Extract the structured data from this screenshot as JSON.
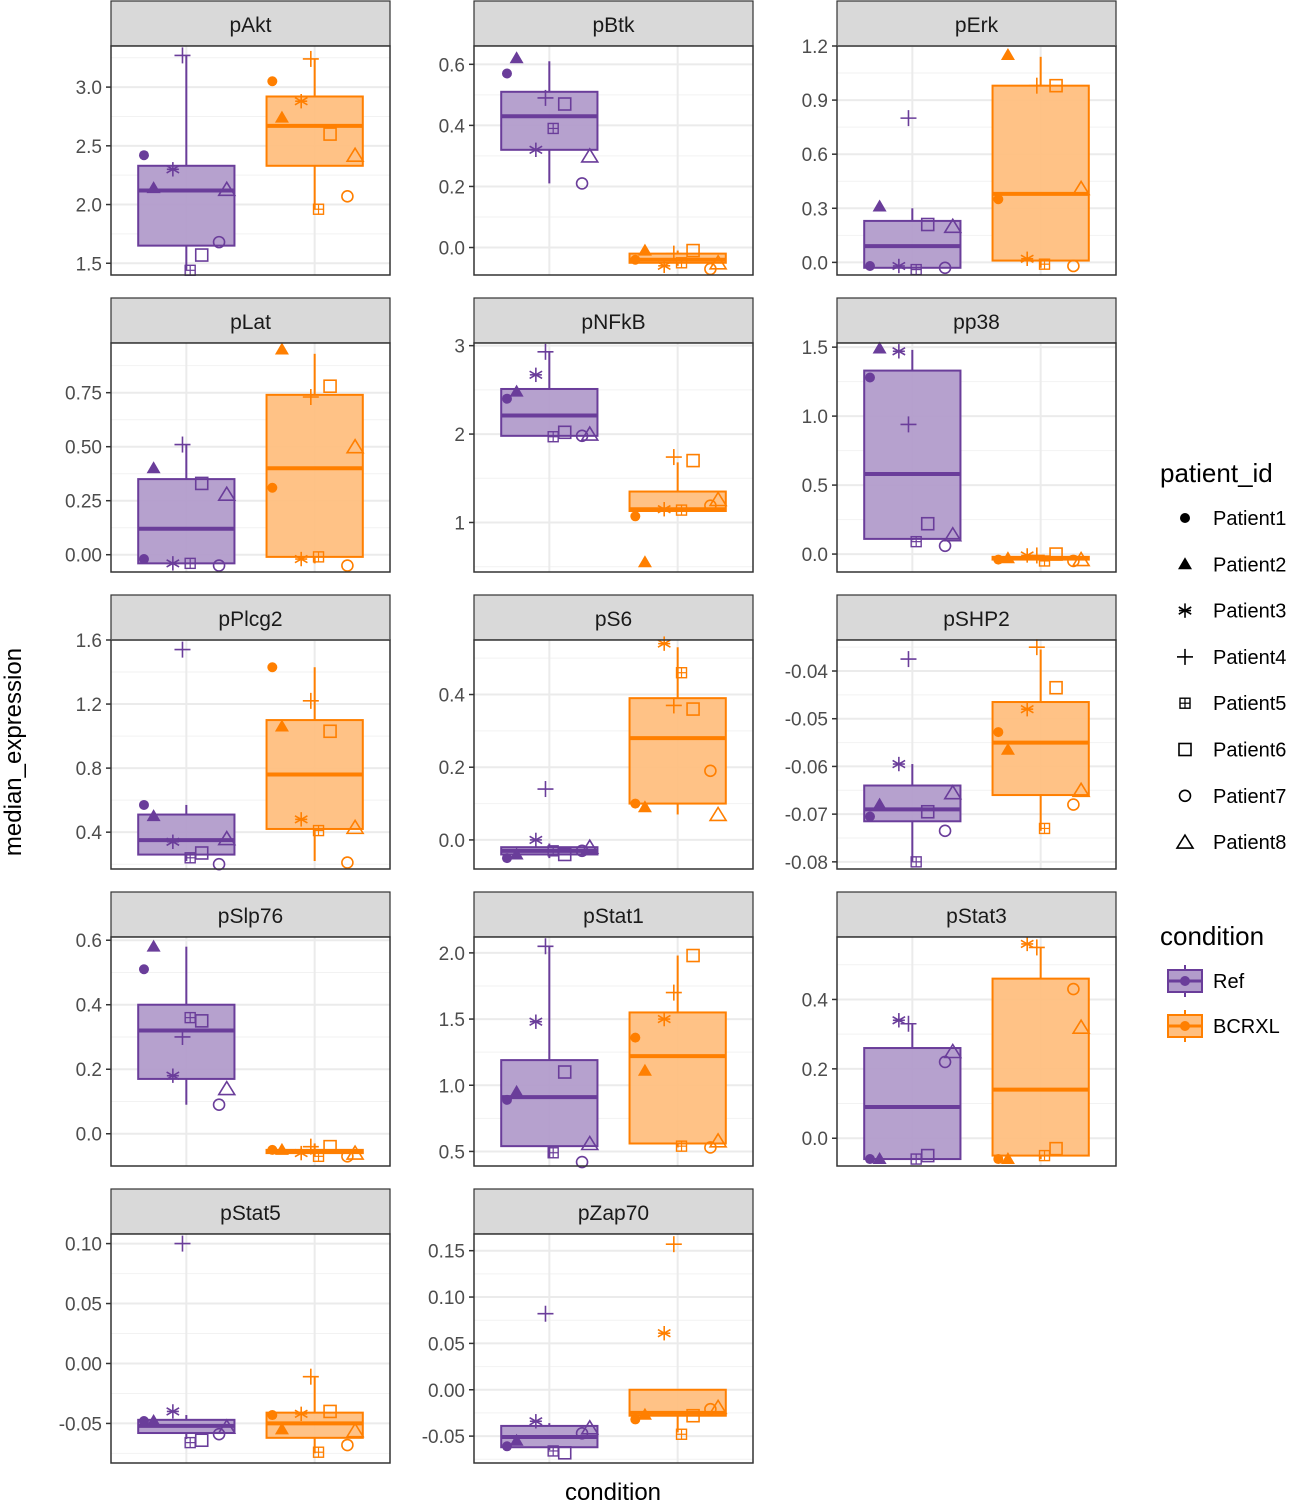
{
  "chart_data": {
    "type": "box",
    "xlabel": "condition",
    "ylabel": "median_expression",
    "x_categories": [
      "Ref",
      "BCRXL"
    ],
    "colors": {
      "Ref": "#6a3d9a",
      "BCRXL": "#ff7f00"
    },
    "grid": true,
    "legend": {
      "position": "right",
      "patient_title": "patient_id",
      "patients": [
        "Patient1",
        "Patient2",
        "Patient3",
        "Patient4",
        "Patient5",
        "Patient6",
        "Patient7",
        "Patient8"
      ],
      "shapes": [
        "filled-circle",
        "filled-triangle",
        "asterisk",
        "plus",
        "square-plus",
        "open-square",
        "open-circle",
        "open-triangle"
      ],
      "condition_title": "condition",
      "conditions": [
        "Ref",
        "BCRXL"
      ]
    },
    "panels": [
      {
        "marker": "pAkt",
        "ylim": [
          1.4,
          3.35
        ],
        "yticks": [
          1.5,
          2.0,
          2.5,
          3.0
        ],
        "ylabels": [
          "1.5",
          "2.0",
          "2.5",
          "3.0"
        ],
        "Ref": {
          "box": [
            1.44,
            1.65,
            2.12,
            2.33,
            3.27
          ],
          "points": [
            2.42,
            2.14,
            2.3,
            3.27,
            1.44,
            1.57,
            1.68,
            2.13
          ]
        },
        "BCRXL": {
          "box": [
            1.96,
            2.33,
            2.67,
            2.92,
            3.24
          ],
          "points": [
            3.05,
            2.74,
            2.88,
            3.24,
            1.96,
            2.6,
            2.07,
            2.42
          ]
        }
      },
      {
        "marker": "pBtk",
        "ylim": [
          -0.09,
          0.66
        ],
        "yticks": [
          0.0,
          0.2,
          0.4,
          0.6
        ],
        "ylabels": [
          "0.0",
          "0.2",
          "0.4",
          "0.6"
        ],
        "Ref": {
          "box": [
            0.21,
            0.32,
            0.43,
            0.51,
            0.61
          ],
          "points": [
            0.57,
            0.62,
            0.32,
            0.49,
            0.39,
            0.47,
            0.21,
            0.3
          ]
        },
        "BCRXL": {
          "box": [
            -0.06,
            -0.05,
            -0.04,
            -0.02,
            -0.01
          ],
          "points": [
            -0.04,
            -0.01,
            -0.06,
            -0.02,
            -0.05,
            -0.01,
            -0.07,
            -0.05
          ]
        }
      },
      {
        "marker": "pErk",
        "ylim": [
          -0.07,
          1.2
        ],
        "yticks": [
          0.0,
          0.3,
          0.6,
          0.9,
          1.2
        ],
        "ylabels": [
          "0.0",
          "0.3",
          "0.6",
          "0.9",
          "1.2"
        ],
        "Ref": {
          "box": [
            -0.03,
            -0.03,
            0.09,
            0.23,
            0.3
          ],
          "points": [
            -0.02,
            0.31,
            -0.02,
            0.8,
            -0.04,
            0.21,
            -0.03,
            0.2
          ]
        },
        "BCRXL": {
          "box": [
            -0.03,
            0.01,
            0.38,
            0.98,
            1.14
          ],
          "points": [
            0.35,
            1.15,
            0.02,
            0.98,
            -0.01,
            0.98,
            -0.02,
            0.41
          ]
        }
      },
      {
        "marker": "pLat",
        "ylim": [
          -0.08,
          0.98
        ],
        "yticks": [
          0.0,
          0.25,
          0.5,
          0.75
        ],
        "ylabels": [
          "0.00",
          "0.25",
          "0.50",
          "0.75"
        ],
        "Ref": {
          "box": [
            -0.04,
            -0.04,
            0.12,
            0.35,
            0.51
          ],
          "points": [
            -0.02,
            0.4,
            -0.04,
            0.51,
            -0.04,
            0.33,
            -0.05,
            0.28
          ]
        },
        "BCRXL": {
          "box": [
            -0.04,
            -0.01,
            0.4,
            0.74,
            0.93
          ],
          "points": [
            0.31,
            0.95,
            -0.02,
            0.73,
            -0.01,
            0.78,
            -0.05,
            0.5
          ]
        }
      },
      {
        "marker": "pNFkB",
        "ylim": [
          0.44,
          3.03
        ],
        "yticks": [
          1,
          2,
          3
        ],
        "ylabels": [
          "1",
          "2",
          "3"
        ],
        "Ref": {
          "box": [
            1.98,
            1.98,
            2.21,
            2.51,
            2.93
          ],
          "points": [
            2.4,
            2.48,
            2.67,
            2.93,
            1.97,
            2.02,
            1.98,
            2.0
          ]
        },
        "BCRXL": {
          "box": [
            1.13,
            1.13,
            1.15,
            1.35,
            1.68
          ],
          "points": [
            1.07,
            0.55,
            1.15,
            1.74,
            1.14,
            1.7,
            1.19,
            1.26
          ]
        }
      },
      {
        "marker": "pp38",
        "ylim": [
          -0.13,
          1.53
        ],
        "yticks": [
          0.0,
          0.5,
          1.0,
          1.5
        ],
        "ylabels": [
          "0.0",
          "0.5",
          "1.0",
          "1.5"
        ],
        "Ref": {
          "box": [
            0.1,
            0.11,
            0.58,
            1.33,
            1.48
          ],
          "points": [
            1.28,
            1.49,
            1.47,
            0.94,
            0.09,
            0.22,
            0.06,
            0.14
          ]
        },
        "BCRXL": {
          "box": [
            -0.05,
            -0.04,
            -0.03,
            -0.02,
            -0.01
          ],
          "points": [
            -0.04,
            -0.03,
            -0.01,
            -0.01,
            -0.05,
            0.0,
            -0.05,
            -0.04
          ]
        }
      },
      {
        "marker": "pPlcg2",
        "ylim": [
          0.17,
          1.6
        ],
        "yticks": [
          0.4,
          0.8,
          1.2,
          1.6
        ],
        "ylabels": [
          "0.4",
          "0.8",
          "1.2",
          "1.6"
        ],
        "Ref": {
          "box": [
            0.22,
            0.26,
            0.35,
            0.51,
            0.57
          ],
          "points": [
            0.57,
            0.5,
            0.34,
            1.54,
            0.24,
            0.27,
            0.2,
            0.36
          ]
        },
        "BCRXL": {
          "box": [
            0.22,
            0.42,
            0.76,
            1.1,
            1.43
          ],
          "points": [
            1.43,
            1.06,
            0.48,
            1.22,
            0.41,
            1.03,
            0.21,
            0.43
          ]
        }
      },
      {
        "marker": "pS6",
        "ylim": [
          -0.08,
          0.55
        ],
        "yticks": [
          0.0,
          0.2,
          0.4
        ],
        "ylabels": [
          "0.0",
          "0.2",
          "0.4"
        ],
        "Ref": {
          "box": [
            -0.05,
            -0.04,
            -0.03,
            -0.02,
            -0.01
          ],
          "points": [
            -0.05,
            -0.04,
            0.0,
            0.14,
            -0.03,
            -0.04,
            -0.03,
            -0.02
          ]
        },
        "BCRXL": {
          "box": [
            0.07,
            0.1,
            0.28,
            0.39,
            0.53
          ],
          "points": [
            0.1,
            0.09,
            0.54,
            0.37,
            0.46,
            0.36,
            0.19,
            0.07
          ]
        }
      },
      {
        "marker": "pSHP2",
        "ylim": [
          -0.0815,
          -0.0335
        ],
        "yticks": [
          -0.08,
          -0.07,
          -0.06,
          -0.05,
          -0.04
        ],
        "ylabels": [
          "-0.08",
          "-0.07",
          "-0.06",
          "-0.05",
          "-0.04"
        ],
        "Ref": {
          "box": [
            -0.08,
            -0.0715,
            -0.069,
            -0.064,
            -0.0595
          ],
          "points": [
            -0.0705,
            -0.068,
            -0.0595,
            -0.0375,
            -0.08,
            -0.0695,
            -0.0735,
            -0.0655
          ]
        },
        "BCRXL": {
          "box": [
            -0.0735,
            -0.066,
            -0.055,
            -0.0465,
            -0.0355
          ],
          "points": [
            -0.0528,
            -0.0565,
            -0.048,
            -0.035,
            -0.073,
            -0.0435,
            -0.068,
            -0.065
          ]
        }
      },
      {
        "marker": "pSlp76",
        "ylim": [
          -0.1,
          0.61
        ],
        "yticks": [
          0.0,
          0.2,
          0.4,
          0.6
        ],
        "ylabels": [
          "0.0",
          "0.2",
          "0.4",
          "0.6"
        ],
        "Ref": {
          "box": [
            0.09,
            0.17,
            0.32,
            0.4,
            0.58
          ],
          "points": [
            0.51,
            0.58,
            0.18,
            0.3,
            0.36,
            0.35,
            0.09,
            0.14
          ]
        },
        "BCRXL": {
          "box": [
            -0.07,
            -0.06,
            -0.055,
            -0.05,
            -0.03
          ],
          "points": [
            -0.05,
            -0.05,
            -0.06,
            -0.04,
            -0.07,
            -0.04,
            -0.07,
            -0.06
          ]
        }
      },
      {
        "marker": "pStat1",
        "ylim": [
          0.39,
          2.12
        ],
        "yticks": [
          0.5,
          1.0,
          1.5,
          2.0
        ],
        "ylabels": [
          "0.5",
          "1.0",
          "1.5",
          "2.0"
        ],
        "Ref": {
          "box": [
            0.45,
            0.54,
            0.91,
            1.19,
            2.05
          ],
          "points": [
            0.89,
            0.95,
            1.48,
            2.05,
            0.49,
            1.1,
            0.42,
            0.56
          ]
        },
        "BCRXL": {
          "box": [
            0.53,
            0.56,
            1.22,
            1.55,
            1.98
          ],
          "points": [
            1.36,
            1.11,
            1.5,
            1.7,
            0.54,
            1.98,
            0.53,
            0.58
          ]
        }
      },
      {
        "marker": "pStat3",
        "ylim": [
          -0.08,
          0.58
        ],
        "yticks": [
          0.0,
          0.2,
          0.4
        ],
        "ylabels": [
          "0.0",
          "0.2",
          "0.4"
        ],
        "Ref": {
          "box": [
            -0.06,
            -0.06,
            0.09,
            0.26,
            0.33
          ],
          "points": [
            -0.06,
            -0.06,
            0.34,
            0.33,
            -0.06,
            -0.05,
            0.22,
            0.25
          ]
        },
        "BCRXL": {
          "box": [
            -0.06,
            -0.05,
            0.14,
            0.46,
            0.55
          ],
          "points": [
            -0.06,
            -0.06,
            0.56,
            0.55,
            -0.05,
            -0.03,
            0.43,
            0.32
          ]
        }
      },
      {
        "marker": "pStat5",
        "ylim": [
          -0.083,
          0.108
        ],
        "yticks": [
          -0.05,
          0.0,
          0.05,
          0.1
        ],
        "ylabels": [
          "-0.05",
          "0.00",
          "0.05",
          "0.10"
        ],
        "Ref": {
          "box": [
            -0.063,
            -0.058,
            -0.052,
            -0.047,
            -0.043
          ],
          "points": [
            -0.048,
            -0.048,
            -0.04,
            0.1,
            -0.066,
            -0.064,
            -0.059,
            -0.053
          ]
        },
        "BCRXL": {
          "box": [
            -0.075,
            -0.062,
            -0.05,
            -0.041,
            -0.011
          ],
          "points": [
            -0.043,
            -0.055,
            -0.042,
            -0.011,
            -0.074,
            -0.04,
            -0.068,
            -0.056
          ]
        }
      },
      {
        "marker": "pZap70",
        "ylim": [
          -0.079,
          0.168
        ],
        "yticks": [
          -0.05,
          0.0,
          0.05,
          0.1,
          0.15
        ],
        "ylabels": [
          "-0.05",
          "0.00",
          "0.05",
          "0.10",
          "0.15"
        ],
        "Ref": {
          "box": [
            -0.065,
            -0.062,
            -0.051,
            -0.039,
            -0.036
          ],
          "points": [
            -0.061,
            -0.055,
            -0.034,
            0.082,
            -0.066,
            -0.068,
            -0.047,
            -0.041
          ]
        },
        "BCRXL": {
          "box": [
            -0.046,
            -0.028,
            -0.025,
            0.0,
            0.0
          ],
          "points": [
            -0.032,
            -0.027,
            0.061,
            0.157,
            -0.048,
            -0.028,
            -0.021,
            -0.019
          ]
        }
      }
    ]
  }
}
